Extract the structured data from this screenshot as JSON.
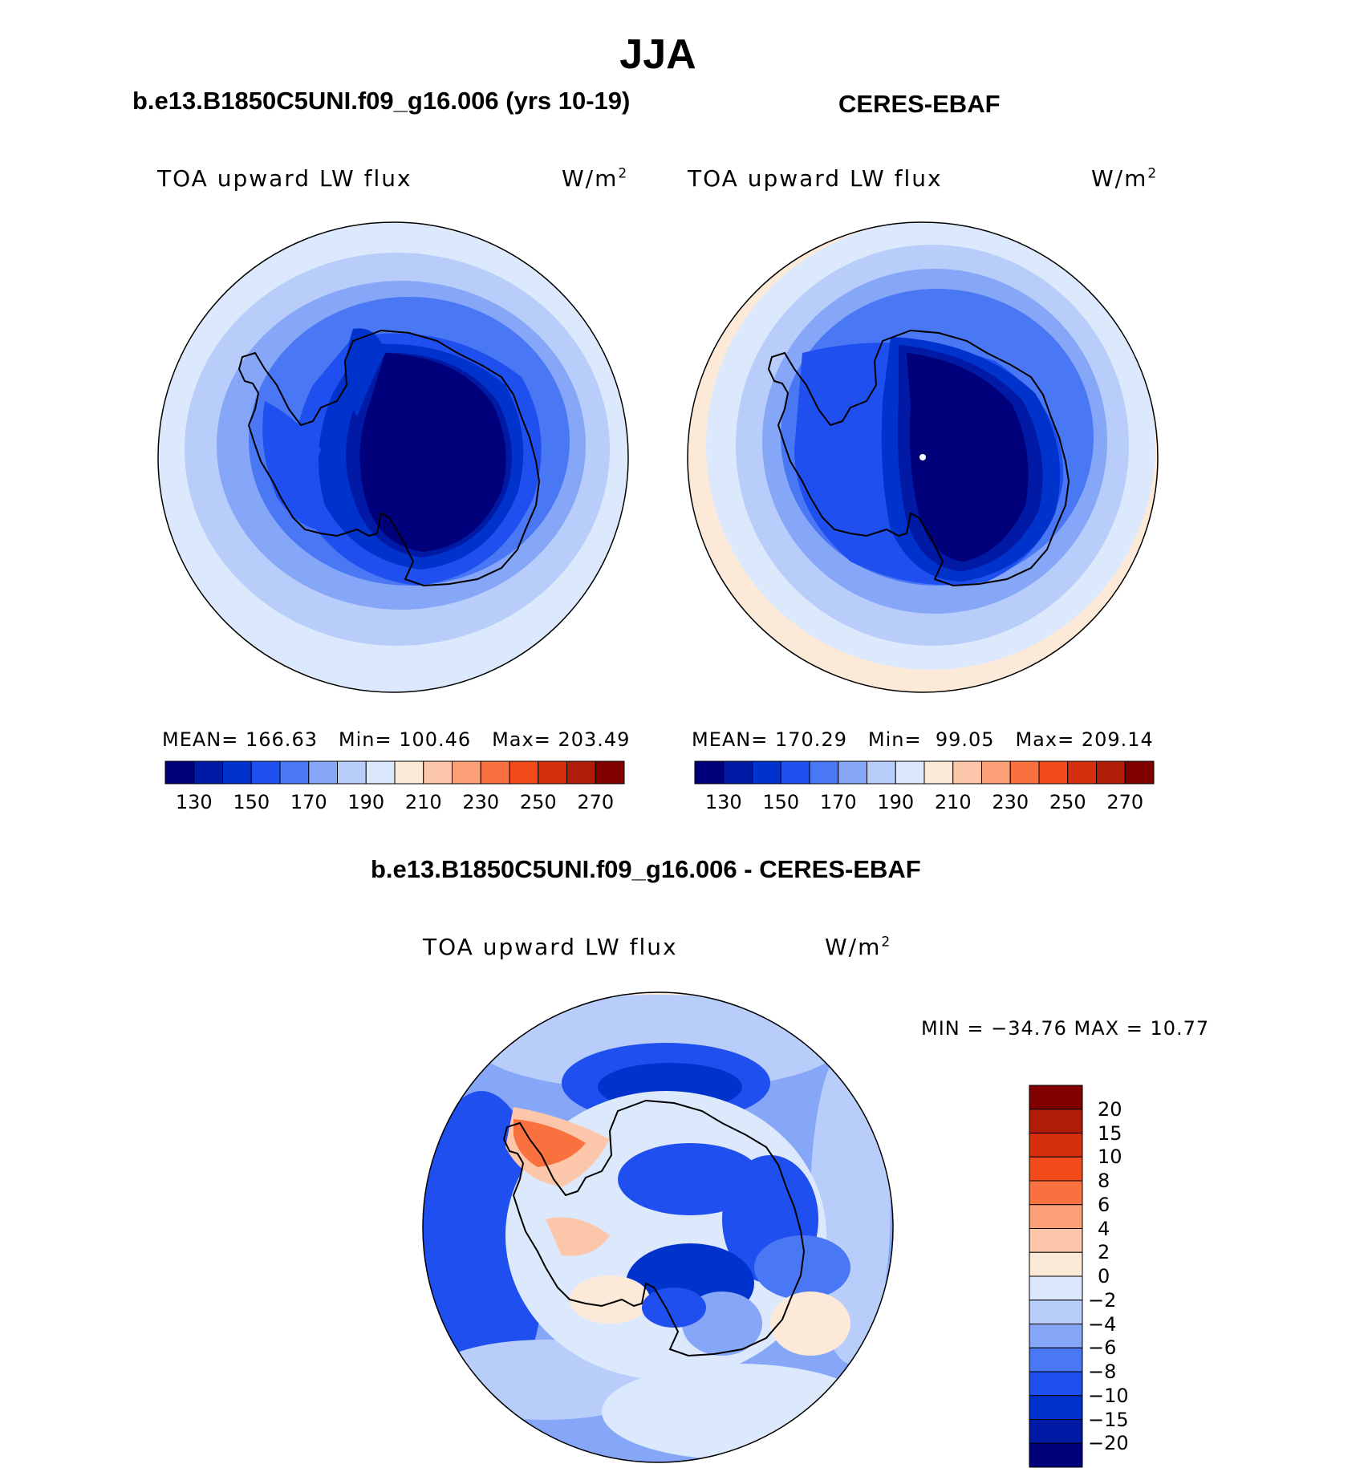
{
  "title": "JJA",
  "panels": [
    {
      "title": "b.e13.B1850C5UNI.f09_g16.006 (yrs 10-19)",
      "variable": "TOA upward LW flux",
      "units": "W/m",
      "units_sup": "2",
      "stats": {
        "mean_label": "MEAN=",
        "mean": "166.63",
        "min_label": "Min=",
        "min": "100.46",
        "max_label": "Max=",
        "max": "203.49"
      }
    },
    {
      "title": "CERES-EBAF",
      "variable": "TOA upward LW flux",
      "units": "W/m",
      "units_sup": "2",
      "stats": {
        "mean_label": "MEAN=",
        "mean": "170.29",
        "min_label": "Min=",
        "min": "99.05",
        "max_label": "Max=",
        "max": "209.14"
      }
    }
  ],
  "colorbar_top": {
    "tick_labels": [
      "130",
      "150",
      "170",
      "190",
      "210",
      "230",
      "250",
      "270"
    ],
    "colors": [
      "#00007a",
      "#001aa6",
      "#0033cc",
      "#1f4fef",
      "#4a78f4",
      "#86a6f8",
      "#b8cdfa",
      "#dce9fc",
      "#fde9d8",
      "#fcc6aa",
      "#fb9f77",
      "#f9713f",
      "#f24a1a",
      "#d52f0d",
      "#b01d07",
      "#800000"
    ]
  },
  "difference": {
    "title": "b.e13.B1850C5UNI.f09_g16.006 - CERES-EBAF",
    "variable": "TOA upward LW flux",
    "units": "W/m",
    "units_sup": "2",
    "range_text": "MIN = −34.76 MAX =   10.77",
    "colorbar": {
      "tick_labels": [
        "20",
        "15",
        "10",
        "8",
        "6",
        "4",
        "2",
        "0",
        "−2",
        "−4",
        "−6",
        "−8",
        "−10",
        "−15",
        "−20"
      ],
      "colors_top_to_bottom": [
        "#800000",
        "#b01d07",
        "#d52f0d",
        "#f24a1a",
        "#f9713f",
        "#fb9f77",
        "#fcc6aa",
        "#fde9d8",
        "#dce9fc",
        "#b8cdfa",
        "#86a6f8",
        "#4a78f4",
        "#1f4fef",
        "#0033cc",
        "#001aa6",
        "#00007a"
      ]
    }
  },
  "map_colors": {
    "coast": "#000000",
    "mid_blue": "#4a78f4",
    "light_blue": "#b8cdfa",
    "pale_blue": "#dce9fc",
    "pale_orange": "#fde9d8",
    "dark_blue": "#00007a",
    "blue": "#0033cc"
  }
}
